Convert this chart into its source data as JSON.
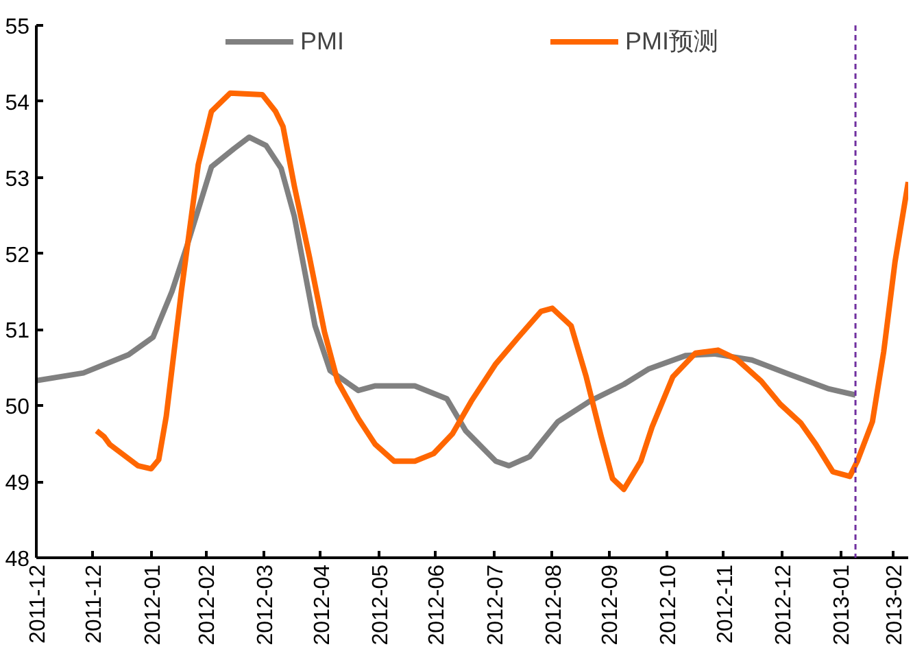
{
  "chart_data": {
    "type": "line",
    "xlim": [
      "2011-12-01",
      "2013-03-08"
    ],
    "ylim": [
      48,
      55
    ],
    "yticks": [
      48,
      49,
      50,
      51,
      52,
      53,
      54,
      55
    ],
    "xticks": [
      {
        "value": "2011-12-01",
        "label": "2011-12"
      },
      {
        "value": "2011-12-31",
        "label": "2011-12"
      },
      {
        "value": "2012-01-31",
        "label": "2012-01"
      },
      {
        "value": "2012-02-29",
        "label": "2012-02"
      },
      {
        "value": "2012-03-31",
        "label": "2012-03"
      },
      {
        "value": "2012-04-30",
        "label": "2012-04"
      },
      {
        "value": "2012-05-31",
        "label": "2012-05"
      },
      {
        "value": "2012-06-30",
        "label": "2012-06"
      },
      {
        "value": "2012-07-31",
        "label": "2012-07"
      },
      {
        "value": "2012-08-31",
        "label": "2012-08"
      },
      {
        "value": "2012-09-30",
        "label": "2012-09"
      },
      {
        "value": "2012-10-31",
        "label": "2012-10"
      },
      {
        "value": "2012-11-30",
        "label": "2012-11"
      },
      {
        "value": "2012-12-31",
        "label": "2012-12"
      },
      {
        "value": "2013-01-31",
        "label": "2013-01"
      },
      {
        "value": "2013-02-28",
        "label": "2013-02"
      }
    ],
    "series": [
      {
        "name": "PMI",
        "color": "#808080",
        "x": [
          "2011-12-01",
          "2011-12-26",
          "2012-01-19",
          "2012-02-01",
          "2012-02-11",
          "2012-02-19",
          "2012-03-03",
          "2012-03-15",
          "2012-03-23",
          "2012-04-01",
          "2012-04-09",
          "2012-04-16",
          "2012-04-27",
          "2012-05-05",
          "2012-05-20",
          "2012-05-29",
          "2012-06-19",
          "2012-07-06",
          "2012-07-16",
          "2012-08-01",
          "2012-08-08",
          "2012-08-19",
          "2012-09-03",
          "2012-09-20",
          "2012-10-08",
          "2012-10-21",
          "2012-11-10",
          "2012-11-25",
          "2012-12-15",
          "2013-01-04",
          "2013-01-25",
          "2013-02-08"
        ],
        "values": [
          50.33,
          50.43,
          50.67,
          50.9,
          51.5,
          52.1,
          53.14,
          53.38,
          53.53,
          53.42,
          53.12,
          52.49,
          51.05,
          50.46,
          50.2,
          50.26,
          50.26,
          50.09,
          49.67,
          49.27,
          49.21,
          49.33,
          49.79,
          50.06,
          50.28,
          50.48,
          50.66,
          50.68,
          50.6,
          50.41,
          50.22,
          50.14
        ]
      },
      {
        "name": "PMI预测",
        "color": "#ff6600",
        "x": [
          "2012-01-02",
          "2012-01-06",
          "2012-01-09",
          "2012-01-24",
          "2012-01-31",
          "2012-02-04",
          "2012-02-08",
          "2012-02-16",
          "2012-02-25",
          "2012-03-03",
          "2012-03-13",
          "2012-03-30",
          "2012-04-06",
          "2012-04-10",
          "2012-04-16",
          "2012-04-24",
          "2012-05-02",
          "2012-05-09",
          "2012-05-20",
          "2012-05-29",
          "2012-06-08",
          "2012-06-19",
          "2012-06-29",
          "2012-07-09",
          "2012-07-19",
          "2012-08-01",
          "2012-08-13",
          "2012-08-25",
          "2012-08-31",
          "2012-09-10",
          "2012-09-18",
          "2012-09-26",
          "2012-10-02",
          "2012-10-08",
          "2012-10-17",
          "2012-10-23",
          "2012-11-03",
          "2012-11-15",
          "2012-11-27",
          "2012-12-07",
          "2012-12-20",
          "2012-12-30",
          "2013-01-10",
          "2013-01-18",
          "2013-01-27",
          "2013-02-05",
          "2013-02-09",
          "2013-02-17",
          "2013-02-23",
          "2013-03-01",
          "2013-03-08"
        ],
        "values": [
          49.67,
          49.59,
          49.49,
          49.21,
          49.17,
          49.29,
          49.86,
          51.5,
          53.17,
          53.87,
          54.11,
          54.09,
          53.87,
          53.67,
          52.89,
          51.96,
          50.97,
          50.32,
          49.83,
          49.49,
          49.27,
          49.27,
          49.37,
          49.63,
          50.06,
          50.55,
          50.9,
          51.24,
          51.28,
          51.05,
          50.38,
          49.59,
          49.04,
          48.9,
          49.27,
          49.72,
          50.38,
          50.69,
          50.73,
          50.61,
          50.32,
          50.02,
          49.77,
          49.49,
          49.13,
          49.07,
          49.27,
          49.79,
          50.71,
          51.89,
          52.94
        ]
      }
    ],
    "ref_lines": [
      {
        "axis": "x",
        "value": "2013-02-08",
        "color": "#7030a0",
        "line_style": "dashed"
      }
    ],
    "legend": "top",
    "line_style": "solid"
  }
}
